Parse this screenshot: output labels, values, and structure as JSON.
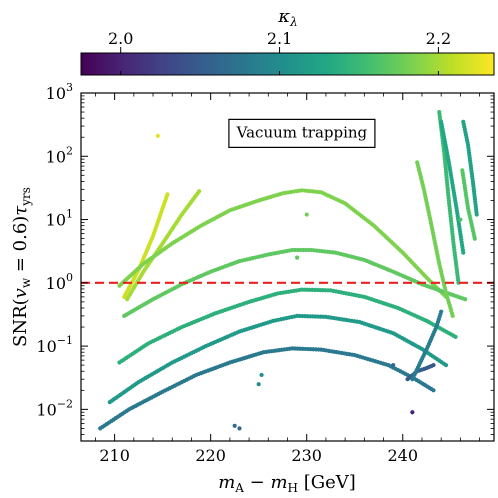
{
  "chart_data": {
    "type": "scatter",
    "title": "",
    "xlabel": "m_A − m_H [GeV]",
    "ylabel": "SNR(v_w = 0.6) τ_yrs",
    "xlim": [
      206.5,
      249.5
    ],
    "ylim_log10": [
      -2.5,
      3
    ],
    "y_scale": "log",
    "x_ticks": [
      210,
      220,
      230,
      240
    ],
    "y_ticks": [
      {
        "exp": -2,
        "label": "10",
        "sup": "−2"
      },
      {
        "exp": -1,
        "label": "10",
        "sup": "−1"
      },
      {
        "exp": 0,
        "label": "10",
        "sup": "0"
      },
      {
        "exp": 1,
        "label": "10",
        "sup": "1"
      },
      {
        "exp": 2,
        "label": "10",
        "sup": "2"
      },
      {
        "exp": 3,
        "label": "10",
        "sup": "3"
      }
    ],
    "threshold_line": {
      "y": 1,
      "color": "#e8231f",
      "style": "dashed"
    },
    "annotation": {
      "text": "Vacuum trapping",
      "x": 229.5,
      "y": 230
    },
    "colorbar": {
      "label": "κ_λ",
      "range": [
        1.975,
        2.235
      ],
      "ticks": [
        2.0,
        2.1,
        2.2
      ],
      "tick_labels": [
        "2.0",
        "2.1",
        "2.2"
      ],
      "colormap": "viridis",
      "placement": "top"
    },
    "series": [
      {
        "kappa": 2.215,
        "x": [
          211,
          212.5,
          214,
          215.5
        ],
        "y": [
          0.6,
          1.6,
          5.5,
          25
        ]
      },
      {
        "kappa": 2.2,
        "x": [
          211.3,
          213,
          215,
          217,
          218.8
        ],
        "y": [
          0.55,
          1.5,
          4.2,
          12,
          28
        ]
      },
      {
        "kappa": 2.185,
        "x": [
          210.5,
          213,
          216,
          219,
          222,
          225,
          227.5,
          229.5,
          231.5,
          234,
          237,
          240,
          242.5,
          244.5
        ],
        "y": [
          0.9,
          2.0,
          4.2,
          8,
          14,
          20,
          26,
          29,
          27,
          18,
          8,
          3,
          1.2,
          0.6
        ]
      },
      {
        "kappa": 2.17,
        "x": [
          211,
          214,
          217,
          220,
          223,
          226,
          228.5,
          230.5,
          233,
          236,
          239,
          242,
          244.5,
          246.5
        ],
        "y": [
          0.3,
          0.55,
          0.95,
          1.5,
          2.2,
          2.8,
          3.3,
          3.3,
          3.0,
          2.3,
          1.5,
          0.95,
          0.7,
          0.55
        ]
      },
      {
        "kappa": 2.14,
        "x": [
          210.5,
          213.5,
          217,
          220.5,
          224,
          227,
          229.5,
          232.5,
          236,
          239.5,
          242.5,
          245.5
        ],
        "y": [
          0.055,
          0.11,
          0.2,
          0.33,
          0.5,
          0.68,
          0.78,
          0.76,
          0.6,
          0.4,
          0.25,
          0.14
        ]
      },
      {
        "kappa": 2.115,
        "x": [
          209.5,
          212.5,
          216,
          219.5,
          223,
          226.5,
          229,
          232,
          235.5,
          239,
          242,
          244.5
        ],
        "y": [
          0.013,
          0.027,
          0.055,
          0.1,
          0.17,
          0.25,
          0.3,
          0.29,
          0.24,
          0.16,
          0.09,
          0.05
        ]
      },
      {
        "kappa": 2.08,
        "x": [
          208.5,
          211.5,
          215,
          218.5,
          222,
          225.5,
          228.5,
          231.5,
          235,
          238.5,
          241,
          243.2
        ],
        "y": [
          0.005,
          0.01,
          0.019,
          0.035,
          0.055,
          0.08,
          0.092,
          0.088,
          0.072,
          0.05,
          0.032,
          0.02
        ]
      },
      {
        "kappa": 2.05,
        "x": [
          240.5,
          241.5,
          242.5,
          243.2
        ],
        "y": [
          0.03,
          0.04,
          0.045,
          0.05
        ]
      },
      {
        "kappa": 2.085,
        "x": [
          241,
          242.5,
          243.5,
          244
        ],
        "y": [
          0.03,
          0.09,
          0.2,
          0.35
        ]
      },
      {
        "kappa": 2.18,
        "x": [
          241.5,
          242.2,
          243,
          243.8,
          244.5,
          245.2
        ],
        "y": [
          80,
          30,
          8,
          2,
          0.7,
          0.3
        ]
      },
      {
        "kappa": 2.15,
        "x": [
          243.8,
          244.3,
          244.8,
          245.3,
          245.8
        ],
        "y": [
          500,
          120,
          20,
          4,
          1.0
        ]
      },
      {
        "kappa": 2.13,
        "x": [
          244,
          244.8,
          245.6,
          246.3
        ],
        "y": [
          350,
          80,
          15,
          3
        ]
      },
      {
        "kappa": 2.125,
        "x": [
          246.3,
          246.8,
          247.3,
          247.7
        ],
        "y": [
          350,
          150,
          40,
          12
        ]
      },
      {
        "kappa": 2.165,
        "x": [
          246.2,
          246.8,
          247.5
        ],
        "y": [
          60,
          15,
          5
        ]
      }
    ],
    "isolated_points": [
      {
        "x": 214.5,
        "y": 210,
        "kappa": 2.225
      },
      {
        "x": 230,
        "y": 12,
        "kappa": 2.18
      },
      {
        "x": 229,
        "y": 2.5,
        "kappa": 2.17
      },
      {
        "x": 223,
        "y": 0.005,
        "kappa": 2.06
      },
      {
        "x": 222.5,
        "y": 0.0055,
        "kappa": 2.06
      },
      {
        "x": 225,
        "y": 0.025,
        "kappa": 2.1
      },
      {
        "x": 225.3,
        "y": 0.035,
        "kappa": 2.1
      },
      {
        "x": 239,
        "y": 0.05,
        "kappa": 2.06
      },
      {
        "x": 241,
        "y": 0.009,
        "kappa": 2.0
      },
      {
        "x": 246,
        "y": 10,
        "kappa": 2.16
      }
    ]
  }
}
